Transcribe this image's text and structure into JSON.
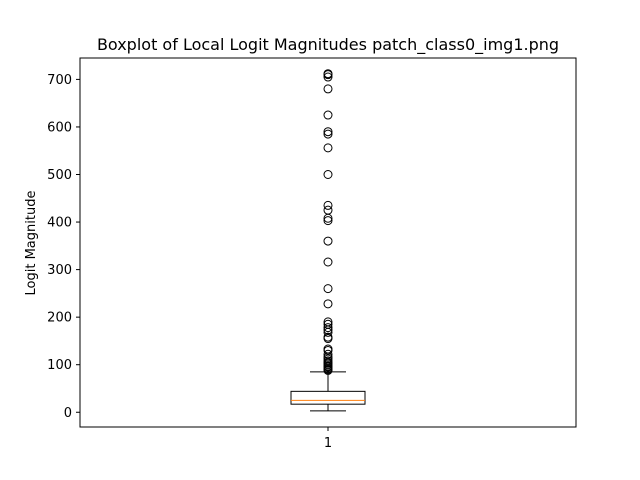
{
  "chart_data": {
    "type": "boxplot",
    "title": "Boxplot of Local Logit Magnitudes patch_class0_img1.png",
    "xlabel": "",
    "ylabel": "Logit Magnitude",
    "ylim": [
      -31,
      745
    ],
    "yticks": [
      0,
      100,
      200,
      300,
      400,
      500,
      600,
      700
    ],
    "categories": [
      "1"
    ],
    "grid": false,
    "legend": "none",
    "boxes": [
      {
        "category": "1",
        "whisker_low": 3,
        "q1": 17,
        "median": 25,
        "q3": 44,
        "whisker_high": 85,
        "outliers": [
          88,
          90,
          92,
          95,
          97,
          100,
          103,
          105,
          108,
          112,
          116,
          122,
          130,
          133,
          155,
          158,
          168,
          173,
          178,
          185,
          190,
          228,
          260,
          316,
          360,
          403,
          408,
          425,
          435,
          500,
          556,
          585,
          590,
          625,
          680,
          705,
          710,
          712
        ]
      }
    ],
    "colors": {
      "box": "#000000",
      "median": "#ff7f0e",
      "flier": "#000000",
      "background": "#ffffff"
    }
  }
}
